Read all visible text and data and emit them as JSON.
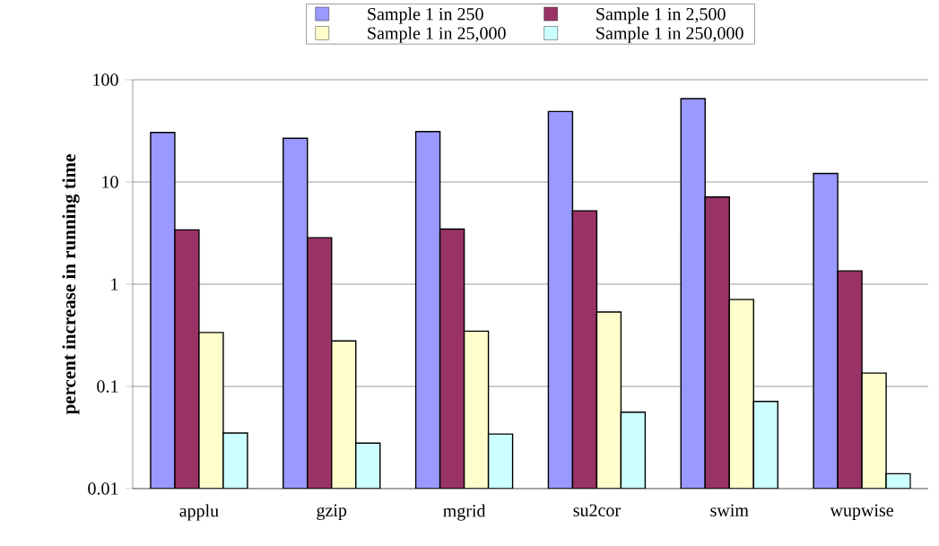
{
  "chart_data": {
    "type": "bar",
    "ylabel": "percent increase in running time",
    "categories": [
      "applu",
      "gzip",
      "mgrid",
      "su2cor",
      "swim",
      "wupwise"
    ],
    "series": [
      {
        "name": "Sample 1 in 250",
        "color": "#9999ff",
        "values": [
          30.5,
          26.8,
          31.1,
          48.9,
          65.4,
          12.1
        ]
      },
      {
        "name": "Sample 1 in 2,500",
        "color": "#993366",
        "values": [
          3.4,
          2.85,
          3.46,
          5.23,
          7.13,
          1.35
        ]
      },
      {
        "name": "Sample 1 in 25,000",
        "color": "#ffffcc",
        "values": [
          0.337,
          0.279,
          0.347,
          0.534,
          0.71,
          0.135
        ]
      },
      {
        "name": "Sample 1 in 250,000",
        "color": "#ccffff",
        "values": [
          0.035,
          0.0279,
          0.0342,
          0.056,
          0.0713,
          0.014
        ]
      }
    ],
    "log": true,
    "ylim": [
      0.01,
      100
    ],
    "yticks": [
      0.01,
      0.1,
      1,
      10,
      100
    ],
    "grid": "y",
    "legend": "top"
  }
}
